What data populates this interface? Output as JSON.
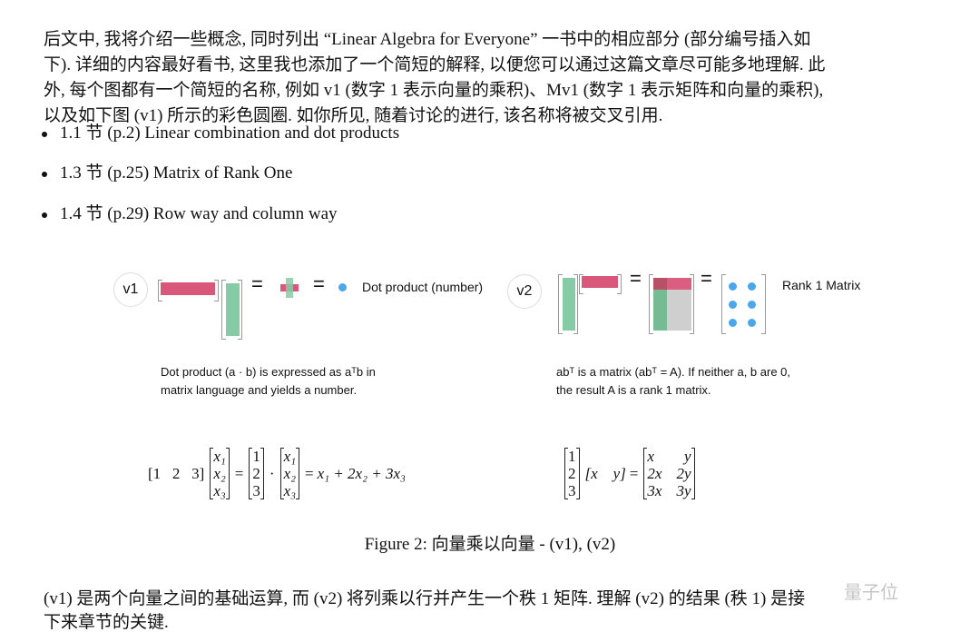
{
  "intro_lines": [
    "后文中, 我将介绍一些概念, 同时列出 “Linear Algebra for Everyone” 一书中的相应部分 (部分编号插入如",
    "下). 详细的内容最好看书, 这里我也添加了一个简短的解释, 以便您可以通过这篇文章尽可能多地理解. 此",
    "外, 每个图都有一个简短的名称, 例如 v1 (数字 1 表示向量的乘积)、Mv1 (数字 1 表示矩阵和向量的乘积),",
    "以及如下图 (v1) 所示的彩色圆圈. 如你所见, 随着讨论的进行, 该名称将被交叉引用."
  ],
  "bullets": [
    "1.1 节 (p.2) Linear combination and dot products",
    "1.3 节 (p.25) Matrix of Rank One",
    "1.4 节 (p.29) Row way and column way"
  ],
  "figure": {
    "v1": {
      "badge": "v1",
      "eq": "=",
      "label": "Dot product  (number)",
      "desc_line1": "Dot product (a · b) is expressed as aᵀb in",
      "desc_line2": "matrix language and yields a number.",
      "formula": {
        "row": "[1   2   3]",
        "col_x": [
          "x₁",
          "x₂",
          "x₃"
        ],
        "col_n": [
          "1",
          "2",
          "3"
        ],
        "dot": "·",
        "eq": "=",
        "result": "x₁ + 2x₂ + 3x₃"
      }
    },
    "v2": {
      "badge": "v2",
      "eq": "=",
      "label": "Rank 1 Matrix",
      "desc_line1": "abᵀ is a matrix (abᵀ = A). If neither a, b are 0,",
      "desc_line2": "the result A is a rank 1 matrix.",
      "formula": {
        "col_n": [
          "1",
          "2",
          "3"
        ],
        "row": "[x    y]",
        "eq": "=",
        "result": [
          [
            "x",
            "y"
          ],
          [
            "2x",
            "2y"
          ],
          [
            "3x",
            "3y"
          ]
        ]
      }
    },
    "colors": {
      "red": "#d9577a",
      "green": "#86cba6",
      "gray": "#d0cfd0",
      "blue": "#4aa8ea"
    },
    "caption": "Figure 2:  向量乘以向量 - (v1), (v2)"
  },
  "outro_lines": [
    "(v1) 是两个向量之间的基础运算, 而 (v2) 将列乘以行并产生一个秩 1 矩阵. 理解 (v2) 的结果 (秩 1) 是接",
    "下来章节的关键."
  ],
  "watermark": "量子位"
}
